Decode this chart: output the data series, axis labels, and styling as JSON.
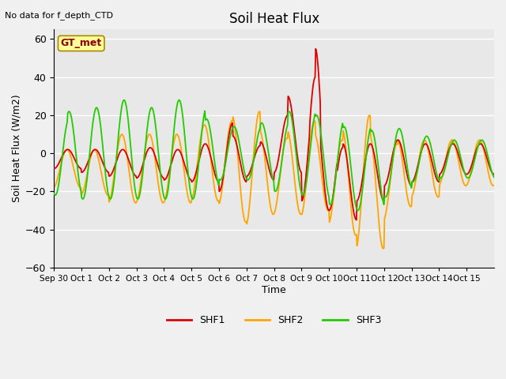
{
  "title": "Soil Heat Flux",
  "top_left_text": "No data for f_depth_CTD",
  "annotation_box": "GT_met",
  "ylabel": "Soil Heat Flux (W/m2)",
  "xlabel": "Time",
  "ylim": [
    -60,
    65
  ],
  "yticks": [
    -60,
    -40,
    -20,
    0,
    20,
    40,
    60
  ],
  "colors": {
    "SHF1": "#dd0000",
    "SHF2": "#ffa500",
    "SHF3": "#22cc00"
  },
  "bg_color": "#e8e8e8",
  "fig_bg": "#f0f0f0",
  "line_width": 1.3,
  "tick_labels": [
    "Sep 30",
    "Oct 1",
    "Oct 2",
    "Oct 3",
    "Oct 4",
    "Oct 5",
    "Oct 6",
    "Oct 7",
    "Oct 8",
    "Oct 9",
    "Oct 10",
    "Oct 11",
    "Oct 12",
    "Oct 13",
    "Oct 14",
    "Oct 15"
  ]
}
